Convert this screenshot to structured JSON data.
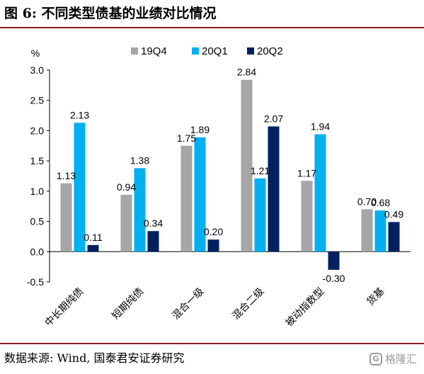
{
  "header": {
    "title": "图 6:  不同类型债基的业绩对比情况"
  },
  "footer": {
    "source": "数据来源: Wind, 国泰君安证券研究",
    "watermark": "格隆汇"
  },
  "chart_data": {
    "type": "bar",
    "ylabel": "%",
    "ylim": [
      -0.5,
      3.0
    ],
    "yticks": [
      "3.0",
      "2.5",
      "2.0",
      "1.5",
      "1.0",
      "0.5",
      "0.0",
      "-0.5"
    ],
    "categories": [
      "中长期纯债",
      "短期纯债",
      "混合一级",
      "混合二级",
      "被动指数型",
      "货基"
    ],
    "series": [
      {
        "name": "19Q4",
        "color": "#a6a6a6",
        "values": [
          1.13,
          0.94,
          1.75,
          2.84,
          1.17,
          0.7
        ],
        "labels": [
          "1.13",
          "0.94",
          "1.75",
          "2.84",
          "1.17",
          "0.70"
        ]
      },
      {
        "name": "20Q1",
        "color": "#00b0f0",
        "values": [
          2.13,
          1.38,
          1.89,
          1.21,
          1.94,
          0.68
        ],
        "labels": [
          "2.13",
          "1.38",
          "1.89",
          "1.21",
          "1.94",
          "0.68"
        ]
      },
      {
        "name": "20Q2",
        "color": "#002060",
        "values": [
          0.11,
          0.34,
          0.2,
          2.07,
          -0.3,
          0.49
        ],
        "labels": [
          "0.11",
          "0.34",
          "0.20",
          "2.07",
          "-0.30",
          "0.49"
        ]
      }
    ],
    "legend_position": "top",
    "grid": false
  }
}
